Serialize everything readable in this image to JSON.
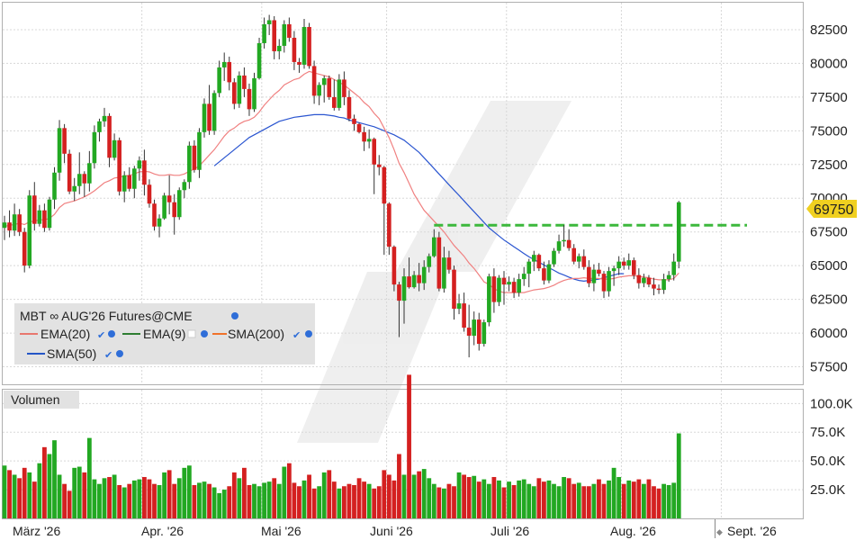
{
  "chart_data": [
    {
      "type": "candlestick",
      "title": "MBT ∞ AUG'26 Futures@CME",
      "legend": {
        "placement": "top-left",
        "items": [
          {
            "label": "EMA(20)",
            "color": "#e8776e"
          },
          {
            "label": "EMA(9)",
            "color": "#2e7d32"
          },
          {
            "label": "SMA(200)",
            "color": "#f0722a"
          },
          {
            "label": "SMA(50)",
            "color": "#2456c7"
          }
        ]
      },
      "colors": {
        "up": "#22a822",
        "down": "#d42020",
        "ema20": "#f08080",
        "sma50": "#2a55d0",
        "level": "#3cb83c",
        "badge": "#f0d020"
      },
      "x_labels": [
        "März '26",
        "Apr. '26",
        "Mai '26",
        "Juni '26",
        "Juli '26",
        "Aug. '26",
        "Sept. '26"
      ],
      "y_ticks": [
        "82500",
        "80000",
        "77500",
        "75000",
        "72500",
        "70000",
        "67500",
        "65000",
        "62500",
        "60000",
        "57500"
      ],
      "ylim": [
        56200,
        84500
      ],
      "last_price": "69750",
      "resistance_level": 68000,
      "grid": true,
      "candles": [
        [
          67800,
          68700,
          66900,
          68200
        ],
        [
          68200,
          69100,
          67100,
          67600
        ],
        [
          67600,
          69600,
          67200,
          68800
        ],
        [
          68800,
          69200,
          67200,
          67500
        ],
        [
          67500,
          67800,
          64500,
          65000
        ],
        [
          65000,
          70600,
          64800,
          70200
        ],
        [
          70200,
          71200,
          67600,
          68100
        ],
        [
          68100,
          69500,
          67900,
          69100
        ],
        [
          69100,
          69600,
          67500,
          67800
        ],
        [
          67800,
          70100,
          67600,
          69900
        ],
        [
          69900,
          72300,
          69200,
          71900
        ],
        [
          71900,
          75800,
          71300,
          75200
        ],
        [
          75200,
          75500,
          72600,
          73300
        ],
        [
          73300,
          73600,
          70300,
          70500
        ],
        [
          70500,
          71500,
          69800,
          70900
        ],
        [
          70900,
          73400,
          70300,
          71800
        ],
        [
          71800,
          72000,
          70100,
          71100
        ],
        [
          71100,
          73500,
          70500,
          72600
        ],
        [
          72600,
          75400,
          72200,
          74900
        ],
        [
          74900,
          75900,
          74200,
          75700
        ],
        [
          75700,
          76700,
          75300,
          76100
        ],
        [
          76100,
          76300,
          72300,
          73000
        ],
        [
          73000,
          74800,
          72800,
          74300
        ],
        [
          74300,
          74500,
          70200,
          70500
        ],
        [
          70500,
          72000,
          69700,
          71700
        ],
        [
          71700,
          72300,
          70500,
          70700
        ],
        [
          70700,
          72400,
          70000,
          72200
        ],
        [
          72200,
          73100,
          71300,
          72800
        ],
        [
          72800,
          73600,
          70200,
          71000
        ],
        [
          71000,
          71400,
          69300,
          69600
        ],
        [
          69600,
          69900,
          67600,
          67900
        ],
        [
          67900,
          68800,
          67100,
          68500
        ],
        [
          68500,
          70400,
          68400,
          70200
        ],
        [
          70200,
          71700,
          68800,
          69700
        ],
        [
          69700,
          70300,
          67300,
          68600
        ],
        [
          68600,
          70800,
          68400,
          70600
        ],
        [
          70600,
          71400,
          70000,
          71200
        ],
        [
          71200,
          74200,
          70700,
          73900
        ],
        [
          73900,
          74300,
          71900,
          72100
        ],
        [
          72100,
          75200,
          71500,
          74900
        ],
        [
          74900,
          77400,
          74500,
          77000
        ],
        [
          77000,
          78400,
          74700,
          75000
        ],
        [
          75000,
          78000,
          74700,
          77800
        ],
        [
          77800,
          80200,
          77500,
          79700
        ],
        [
          79700,
          80800,
          78700,
          80100
        ],
        [
          80100,
          80500,
          78000,
          78600
        ],
        [
          78600,
          78900,
          76600,
          77000
        ],
        [
          77000,
          79400,
          76700,
          79100
        ],
        [
          79100,
          79700,
          77500,
          78100
        ],
        [
          78100,
          78500,
          76100,
          76600
        ],
        [
          76600,
          79300,
          76400,
          78900
        ],
        [
          78900,
          81900,
          78800,
          81500
        ],
        [
          81500,
          83400,
          81100,
          82900
        ],
        [
          82900,
          83600,
          82100,
          83200
        ],
        [
          83200,
          83500,
          80300,
          80900
        ],
        [
          80900,
          81800,
          80300,
          81300
        ],
        [
          81300,
          83200,
          80800,
          82900
        ],
        [
          82900,
          83400,
          81600,
          81900
        ],
        [
          81900,
          82400,
          79500,
          80100
        ],
        [
          80100,
          80400,
          79300,
          79900
        ],
        [
          79900,
          83300,
          79600,
          82700
        ],
        [
          82700,
          83000,
          79600,
          79800
        ],
        [
          79800,
          80200,
          77000,
          77600
        ],
        [
          77600,
          78600,
          76900,
          78400
        ],
        [
          78400,
          79100,
          77100,
          78900
        ],
        [
          78900,
          79100,
          77300,
          77500
        ],
        [
          77500,
          78800,
          76500,
          76700
        ],
        [
          76700,
          79200,
          76500,
          78800
        ],
        [
          78800,
          79400,
          76900,
          77500
        ],
        [
          77500,
          78000,
          75700,
          75900
        ],
        [
          75900,
          76200,
          75000,
          75500
        ],
        [
          75500,
          75600,
          74800,
          74900
        ],
        [
          74900,
          75300,
          73500,
          74200
        ],
        [
          74200,
          75100,
          73700,
          74400
        ],
        [
          74400,
          74500,
          70300,
          72500
        ],
        [
          72500,
          73200,
          71700,
          72300
        ],
        [
          72300,
          72400,
          65800,
          69600
        ],
        [
          69600,
          69700,
          65800,
          66400
        ],
        [
          66400,
          66500,
          63100,
          63600
        ],
        [
          63600,
          63800,
          59700,
          62400
        ],
        [
          62400,
          64800,
          60700,
          64200
        ],
        [
          64200,
          65600,
          63300,
          63400
        ],
        [
          63400,
          64600,
          63300,
          64300
        ],
        [
          64300,
          65200,
          63100,
          63700
        ],
        [
          63700,
          65400,
          63200,
          64900
        ],
        [
          64900,
          65900,
          64500,
          65700
        ],
        [
          65700,
          67700,
          65600,
          67100
        ],
        [
          67100,
          67500,
          63100,
          63300
        ],
        [
          63300,
          66400,
          63000,
          65600
        ],
        [
          65600,
          66100,
          64400,
          64700
        ],
        [
          64700,
          65000,
          61000,
          61800
        ],
        [
          61800,
          62900,
          61400,
          62200
        ],
        [
          62200,
          63000,
          60100,
          60400
        ],
        [
          60400,
          62100,
          58200,
          59800
        ],
        [
          59800,
          61600,
          59100,
          61000
        ],
        [
          61000,
          61500,
          58700,
          59200
        ],
        [
          59200,
          61000,
          59000,
          60800
        ],
        [
          60800,
          64400,
          60500,
          64200
        ],
        [
          64200,
          64800,
          61500,
          62300
        ],
        [
          62300,
          64300,
          62000,
          64100
        ],
        [
          64100,
          64600,
          62100,
          63600
        ],
        [
          63600,
          64200,
          63100,
          63800
        ],
        [
          63800,
          64100,
          62600,
          63000
        ],
        [
          63000,
          64400,
          62700,
          64000
        ],
        [
          64000,
          64900,
          63500,
          64400
        ],
        [
          64400,
          65500,
          63400,
          65300
        ],
        [
          65300,
          66100,
          64600,
          65800
        ],
        [
          65800,
          65900,
          64600,
          64800
        ],
        [
          64800,
          65300,
          63600,
          63900
        ],
        [
          63900,
          65400,
          63700,
          65100
        ],
        [
          65100,
          66300,
          64900,
          66100
        ],
        [
          66100,
          67300,
          65900,
          66800
        ],
        [
          66800,
          68000,
          66400,
          66900
        ],
        [
          66900,
          67700,
          66100,
          66300
        ],
        [
          66300,
          66600,
          65100,
          65300
        ],
        [
          65300,
          65900,
          64800,
          65700
        ],
        [
          65700,
          66200,
          64700,
          64900
        ],
        [
          64900,
          65400,
          63400,
          63700
        ],
        [
          63700,
          65100,
          63100,
          64700
        ],
        [
          64700,
          65200,
          64200,
          64400
        ],
        [
          64400,
          64600,
          62600,
          63100
        ],
        [
          63100,
          64900,
          62700,
          64600
        ],
        [
          64600,
          65000,
          63500,
          64800
        ],
        [
          64800,
          65700,
          64300,
          65300
        ],
        [
          65300,
          65600,
          64700,
          65000
        ],
        [
          65000,
          65900,
          64700,
          65400
        ],
        [
          65400,
          65600,
          64000,
          64300
        ],
        [
          64300,
          64800,
          63300,
          63700
        ],
        [
          63700,
          64400,
          63400,
          64100
        ],
        [
          64100,
          64300,
          63400,
          63600
        ],
        [
          63600,
          64100,
          62800,
          63300
        ],
        [
          63300,
          63600,
          62900,
          63200
        ],
        [
          63200,
          64400,
          62900,
          64000
        ],
        [
          64000,
          64600,
          63800,
          64300
        ],
        [
          64300,
          65900,
          63900,
          65300
        ],
        [
          65300,
          69800,
          64800,
          69700
        ]
      ],
      "ema20": [
        67900,
        68000,
        68050,
        68150,
        68050,
        68250,
        68300,
        68400,
        68400,
        68500,
        68800,
        69300,
        69600,
        69700,
        69800,
        69950,
        70100,
        70300,
        70550,
        70850,
        71150,
        71300,
        71500,
        71550,
        71650,
        71700,
        71800,
        71950,
        72000,
        71950,
        71800,
        71700,
        71700,
        71750,
        71700,
        71700,
        71800,
        72000,
        72150,
        72400,
        72800,
        73200,
        73600,
        74100,
        74600,
        75000,
        75200,
        75500,
        75700,
        75800,
        76000,
        76400,
        76900,
        77300,
        77700,
        78000,
        78400,
        78600,
        78800,
        78900,
        79200,
        79400,
        79300,
        79200,
        79100,
        79000,
        78800,
        78600,
        78400,
        78100,
        77800,
        77500,
        77100,
        76800,
        76300,
        75900,
        75200,
        74500,
        73600,
        72600,
        71900,
        71100,
        70300,
        69700,
        69100,
        68700,
        68300,
        67900,
        67500,
        67000,
        66500,
        66100,
        65700,
        65200,
        64800,
        64300,
        63800,
        63600,
        63300,
        63100,
        63000,
        63000,
        63000,
        63000,
        63000,
        63100,
        63200,
        63250,
        63300,
        63400,
        63550,
        63750,
        63900,
        64000,
        64050,
        64050,
        64100,
        64050,
        64050,
        64050,
        64000,
        64000,
        64050,
        64150,
        64200,
        64250,
        64250,
        64200,
        64150,
        64100,
        64000,
        63950,
        63950,
        63950,
        64050,
        64450
      ],
      "sma50": [
        null,
        null,
        null,
        null,
        null,
        null,
        null,
        null,
        null,
        null,
        null,
        null,
        null,
        null,
        null,
        null,
        null,
        null,
        null,
        null,
        null,
        null,
        null,
        null,
        null,
        null,
        null,
        null,
        null,
        null,
        null,
        null,
        null,
        null,
        null,
        null,
        null,
        null,
        null,
        null,
        null,
        null,
        72400,
        72700,
        73000,
        73300,
        73600,
        73900,
        74200,
        74500,
        74700,
        74900,
        75100,
        75300,
        75500,
        75700,
        75800,
        75900,
        76000,
        76050,
        76100,
        76150,
        76200,
        76200,
        76200,
        76150,
        76100,
        76000,
        75950,
        75800,
        75700,
        75600,
        75500,
        75400,
        75300,
        75150,
        75000,
        74850,
        74700,
        74500,
        74300,
        74000,
        73700,
        73400,
        73000,
        72600,
        72200,
        71800,
        71400,
        71000,
        70600,
        70200,
        69800,
        69400,
        69000,
        68600,
        68200,
        67800,
        67500,
        67200,
        66900,
        66650,
        66400,
        66150,
        65900,
        65650,
        65450,
        65250,
        65050,
        64850,
        64650,
        64450,
        64300,
        64150,
        64000,
        63900,
        63850,
        63900,
        63950,
        64000,
        64100,
        64200,
        64300,
        64400,
        64400
      ]
    },
    {
      "type": "bar",
      "title": "Volumen",
      "y_ticks": [
        "100.0K",
        "75.0K",
        "50.0K",
        "25.0K"
      ],
      "ylim": [
        0,
        112000
      ],
      "values": [
        46,
        42,
        38,
        35,
        44,
        40,
        32,
        48,
        62,
        56,
        68,
        38,
        30,
        24,
        44,
        45,
        40,
        70,
        34,
        30,
        35,
        36,
        38,
        29,
        27,
        30,
        33,
        34,
        36,
        34,
        30,
        29,
        40,
        42,
        30,
        35,
        44,
        46,
        29,
        31,
        32,
        30,
        27,
        22,
        25,
        28,
        40,
        35,
        44,
        29,
        30,
        28,
        31,
        32,
        35,
        30,
        45,
        48,
        31,
        28,
        33,
        38,
        26,
        28,
        40,
        42,
        32,
        26,
        28,
        30,
        29,
        35,
        32,
        30,
        26,
        28,
        42,
        38,
        33,
        56,
        38,
        125,
        38,
        41,
        43,
        35,
        30,
        27,
        26,
        30,
        28,
        40,
        38,
        36,
        37,
        32,
        34,
        30,
        36,
        33,
        27,
        32,
        29,
        33,
        34,
        30,
        28,
        35,
        32,
        33,
        30,
        28,
        36,
        35,
        30,
        31,
        28,
        28,
        30,
        34,
        30,
        33,
        44,
        36,
        30,
        33,
        32,
        34,
        30,
        34,
        28,
        26,
        30,
        29,
        31,
        74
      ],
      "colors": {
        "up": "#22a822",
        "down": "#d42020"
      }
    }
  ]
}
